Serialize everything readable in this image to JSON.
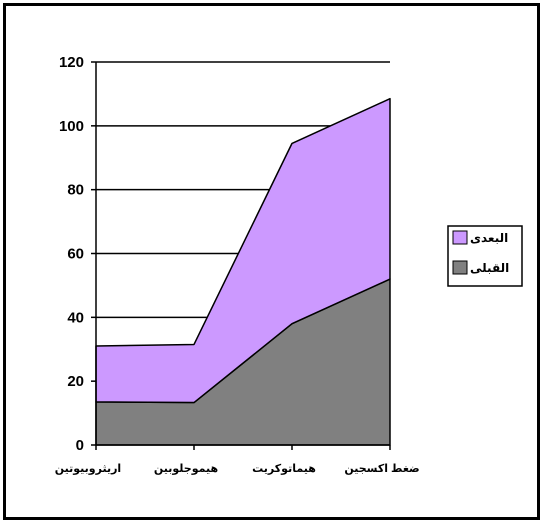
{
  "chart_data": {
    "type": "area",
    "stacked": true,
    "categories": [
      "اريثروبيوتين",
      "هيموجلوبين",
      "هيماتوكريت",
      "ضغط اكسجين"
    ],
    "series": [
      {
        "name": "القبلى",
        "values": [
          13.5,
          13.3,
          38,
          52
        ],
        "color": "#808080"
      },
      {
        "name": "البعدى",
        "values": [
          17.5,
          18.2,
          56.5,
          56.5
        ],
        "color": "#cc99ff"
      }
    ],
    "ylim": [
      0,
      120
    ],
    "yticks": [
      0,
      20,
      40,
      60,
      80,
      100,
      120
    ],
    "grid": true,
    "legend_position": "right"
  }
}
